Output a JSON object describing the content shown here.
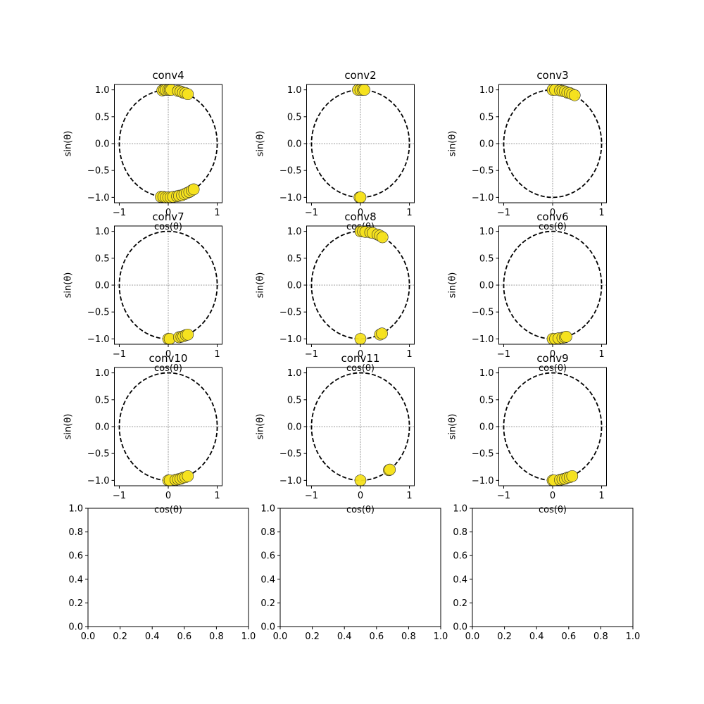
{
  "chart_data": [
    {
      "type": "scatter",
      "title": "conv4",
      "xlabel": "cos(θ)",
      "ylabel": "sin(θ)",
      "xlim": [
        -1.1,
        1.1
      ],
      "ylim": [
        -1.1,
        1.1
      ],
      "xticks": [
        "−1",
        "0",
        "1"
      ],
      "yticks": [
        "−1.0",
        "−0.5",
        "0.0",
        "0.5",
        "1.0"
      ],
      "reference": "unit-circle-dashed",
      "grid": "crosshair-at-origin",
      "points": [
        [
          -0.12,
          0.99
        ],
        [
          -0.08,
          1.0
        ],
        [
          -0.05,
          1.0
        ],
        [
          0.0,
          1.0
        ],
        [
          0.03,
          1.0
        ],
        [
          0.06,
          1.0
        ],
        [
          0.2,
          0.98
        ],
        [
          0.25,
          0.97
        ],
        [
          0.3,
          0.95
        ],
        [
          0.35,
          0.94
        ],
        [
          0.4,
          0.92
        ],
        [
          -0.15,
          -0.99
        ],
        [
          -0.1,
          -0.99
        ],
        [
          -0.05,
          -1.0
        ],
        [
          0.0,
          -1.0
        ],
        [
          0.05,
          -1.0
        ],
        [
          0.1,
          -0.99
        ],
        [
          0.18,
          -0.98
        ],
        [
          0.22,
          -0.97
        ],
        [
          0.28,
          -0.96
        ],
        [
          0.33,
          -0.94
        ],
        [
          0.38,
          -0.92
        ],
        [
          0.43,
          -0.9
        ],
        [
          0.48,
          -0.87
        ],
        [
          0.52,
          -0.85
        ]
      ]
    },
    {
      "type": "scatter",
      "title": "conv2",
      "xlabel": "cos(θ)",
      "ylabel": "sin(θ)",
      "xlim": [
        -1.1,
        1.1
      ],
      "ylim": [
        -1.1,
        1.1
      ],
      "xticks": [
        "−1",
        "0",
        "1"
      ],
      "yticks": [
        "−1.0",
        "−0.5",
        "0.0",
        "0.5",
        "1.0"
      ],
      "reference": "unit-circle-dashed",
      "grid": "crosshair-at-origin",
      "points": [
        [
          -0.05,
          1.0
        ],
        [
          0.0,
          1.0
        ],
        [
          0.05,
          1.0
        ],
        [
          0.08,
          1.0
        ],
        [
          -0.02,
          -1.0
        ],
        [
          0.0,
          -1.0
        ]
      ]
    },
    {
      "type": "scatter",
      "title": "conv3",
      "xlabel": "cos(θ)",
      "ylabel": "sin(θ)",
      "xlim": [
        -1.1,
        1.1
      ],
      "ylim": [
        -1.1,
        1.1
      ],
      "xticks": [
        "−1",
        "0",
        "1"
      ],
      "yticks": [
        "−1.0",
        "−0.5",
        "0.0",
        "0.5",
        "1.0"
      ],
      "reference": "unit-circle-dashed",
      "grid": "crosshair-at-origin",
      "points": [
        [
          0.0,
          1.0
        ],
        [
          0.05,
          1.0
        ],
        [
          0.15,
          0.99
        ],
        [
          0.2,
          0.98
        ],
        [
          0.25,
          0.97
        ],
        [
          0.3,
          0.95
        ],
        [
          0.35,
          0.94
        ],
        [
          0.4,
          0.92
        ],
        [
          0.45,
          0.9
        ]
      ]
    },
    {
      "type": "scatter",
      "title": "conv7",
      "xlabel": "cos(θ)",
      "ylabel": "sin(θ)",
      "xlim": [
        -1.1,
        1.1
      ],
      "ylim": [
        -1.1,
        1.1
      ],
      "xticks": [
        "−1",
        "0",
        "1"
      ],
      "yticks": [
        "−1.0",
        "−0.5",
        "0.0",
        "0.5",
        "1.0"
      ],
      "reference": "unit-circle-dashed",
      "grid": "crosshair-at-origin",
      "points": [
        [
          0.0,
          -1.0
        ],
        [
          0.03,
          -1.0
        ],
        [
          0.22,
          -0.97
        ],
        [
          0.27,
          -0.96
        ],
        [
          0.31,
          -0.95
        ],
        [
          0.36,
          -0.93
        ],
        [
          0.4,
          -0.92
        ]
      ]
    },
    {
      "type": "scatter",
      "title": "conv8",
      "xlabel": "cos(θ)",
      "ylabel": "sin(θ)",
      "xlim": [
        -1.1,
        1.1
      ],
      "ylim": [
        -1.1,
        1.1
      ],
      "xticks": [
        "−1",
        "0",
        "1"
      ],
      "yticks": [
        "−1.0",
        "−0.5",
        "0.0",
        "0.5",
        "1.0"
      ],
      "reference": "unit-circle-dashed",
      "grid": "crosshair-at-origin",
      "points": [
        [
          0.0,
          1.0
        ],
        [
          0.05,
          1.0
        ],
        [
          0.1,
          0.99
        ],
        [
          0.2,
          0.98
        ],
        [
          0.25,
          0.97
        ],
        [
          0.35,
          0.94
        ],
        [
          0.4,
          0.92
        ],
        [
          0.45,
          0.89
        ],
        [
          0.0,
          -1.0
        ],
        [
          0.4,
          -0.92
        ],
        [
          0.44,
          -0.9
        ]
      ]
    },
    {
      "type": "scatter",
      "title": "conv6",
      "xlabel": "cos(θ)",
      "ylabel": "sin(θ)",
      "xlim": [
        -1.1,
        1.1
      ],
      "ylim": [
        -1.1,
        1.1
      ],
      "xticks": [
        "−1",
        "0",
        "1"
      ],
      "yticks": [
        "−1.0",
        "−0.5",
        "0.0",
        "0.5",
        "1.0"
      ],
      "reference": "unit-circle-dashed",
      "grid": "crosshair-at-origin",
      "points": [
        [
          0.0,
          -1.0
        ],
        [
          0.05,
          -1.0
        ],
        [
          0.12,
          -0.99
        ],
        [
          0.2,
          -0.98
        ],
        [
          0.25,
          -0.97
        ],
        [
          0.28,
          -0.96
        ]
      ]
    },
    {
      "type": "scatter",
      "title": "conv10",
      "xlabel": "cos(θ)",
      "ylabel": "sin(θ)",
      "xlim": [
        -1.1,
        1.1
      ],
      "ylim": [
        -1.1,
        1.1
      ],
      "xticks": [
        "−1",
        "0",
        "1"
      ],
      "yticks": [
        "−1.0",
        "−0.5",
        "0.0",
        "0.5",
        "1.0"
      ],
      "reference": "unit-circle-dashed",
      "grid": "crosshair-at-origin",
      "points": [
        [
          0.0,
          -1.0
        ],
        [
          0.03,
          -1.0
        ],
        [
          0.15,
          -0.99
        ],
        [
          0.2,
          -0.98
        ],
        [
          0.25,
          -0.97
        ],
        [
          0.3,
          -0.95
        ],
        [
          0.35,
          -0.94
        ],
        [
          0.4,
          -0.92
        ]
      ]
    },
    {
      "type": "scatter",
      "title": "conv11",
      "xlabel": "cos(θ)",
      "ylabel": "sin(θ)",
      "xlim": [
        -1.1,
        1.1
      ],
      "ylim": [
        -1.1,
        1.1
      ],
      "xticks": [
        "−1",
        "0",
        "1"
      ],
      "yticks": [
        "−1.0",
        "−0.5",
        "0.0",
        "0.5",
        "1.0"
      ],
      "reference": "unit-circle-dashed",
      "grid": "crosshair-at-origin",
      "points": [
        [
          0.0,
          -1.0
        ],
        [
          0.58,
          -0.81
        ],
        [
          0.6,
          -0.8
        ]
      ]
    },
    {
      "type": "scatter",
      "title": "conv9",
      "xlabel": "cos(θ)",
      "ylabel": "sin(θ)",
      "xlim": [
        -1.1,
        1.1
      ],
      "ylim": [
        -1.1,
        1.1
      ],
      "xticks": [
        "−1",
        "0",
        "1"
      ],
      "yticks": [
        "−1.0",
        "−0.5",
        "0.0",
        "0.5",
        "1.0"
      ],
      "reference": "unit-circle-dashed",
      "grid": "crosshair-at-origin",
      "points": [
        [
          0.0,
          -1.0
        ],
        [
          0.03,
          -1.0
        ],
        [
          0.15,
          -0.99
        ],
        [
          0.2,
          -0.98
        ],
        [
          0.25,
          -0.97
        ],
        [
          0.3,
          -0.95
        ],
        [
          0.35,
          -0.94
        ],
        [
          0.4,
          -0.92
        ]
      ]
    },
    {
      "type": "empty",
      "xlim": [
        0,
        1
      ],
      "ylim": [
        0,
        1
      ],
      "xticks": [
        "0.0",
        "0.2",
        "0.4",
        "0.6",
        "0.8",
        "1.0"
      ],
      "yticks": [
        "0.0",
        "0.2",
        "0.4",
        "0.6",
        "0.8",
        "1.0"
      ]
    },
    {
      "type": "empty",
      "xlim": [
        0,
        1
      ],
      "ylim": [
        0,
        1
      ],
      "xticks": [
        "0.0",
        "0.2",
        "0.4",
        "0.6",
        "0.8",
        "1.0"
      ],
      "yticks": [
        "0.0",
        "0.2",
        "0.4",
        "0.6",
        "0.8",
        "1.0"
      ]
    },
    {
      "type": "empty",
      "xlim": [
        0,
        1
      ],
      "ylim": [
        0,
        1
      ],
      "xticks": [
        "0.0",
        "0.2",
        "0.4",
        "0.6",
        "0.8",
        "1.0"
      ],
      "yticks": [
        "0.0",
        "0.2",
        "0.4",
        "0.6",
        "0.8",
        "1.0"
      ]
    }
  ],
  "colors": {
    "marker_fill": "#f5e11f",
    "marker_edge": "#2a2a2a",
    "circle": "#000000",
    "crosshair": "#808080"
  }
}
